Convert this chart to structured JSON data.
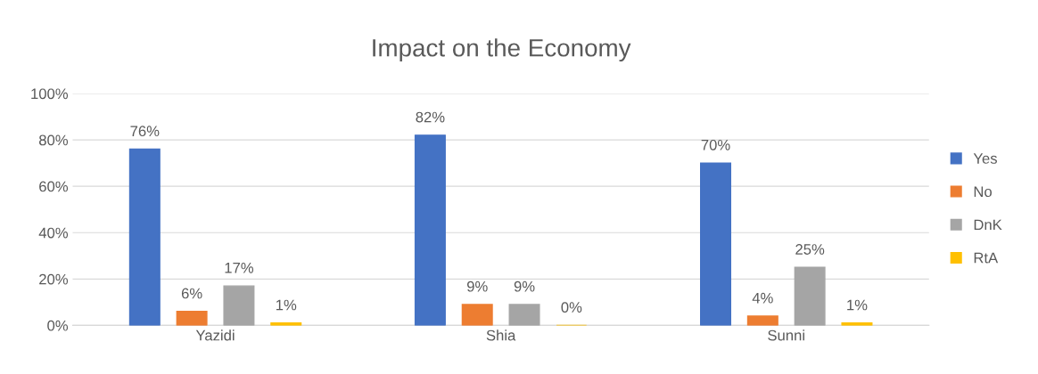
{
  "chart_data": {
    "type": "bar",
    "title": "Impact on the Economy",
    "categories": [
      "Yazidi",
      "Shia",
      "Sunni"
    ],
    "series": [
      {
        "name": "Yes",
        "color": "#4472c4",
        "values": [
          76,
          82,
          70
        ],
        "value_labels": [
          "76%",
          "82%",
          "70%"
        ]
      },
      {
        "name": "No",
        "color": "#ed7d31",
        "values": [
          6,
          9,
          4
        ],
        "value_labels": [
          "6%",
          "9%",
          "4%"
        ]
      },
      {
        "name": "DnK",
        "color": "#a5a5a5",
        "values": [
          17,
          9,
          25
        ],
        "value_labels": [
          "17%",
          "9%",
          "25%"
        ]
      },
      {
        "name": "RtA",
        "color": "#ffc000",
        "values": [
          1,
          0,
          1
        ],
        "value_labels": [
          "1%",
          "0%",
          "1%"
        ]
      }
    ],
    "ylim": [
      0,
      100
    ],
    "yticks": [
      {
        "value": 0,
        "label": "0%"
      },
      {
        "value": 20,
        "label": "20%"
      },
      {
        "value": 40,
        "label": "40%"
      },
      {
        "value": 60,
        "label": "60%"
      },
      {
        "value": 80,
        "label": "80%"
      },
      {
        "value": 100,
        "label": "100%"
      }
    ],
    "grid": "y",
    "legend": "right"
  }
}
